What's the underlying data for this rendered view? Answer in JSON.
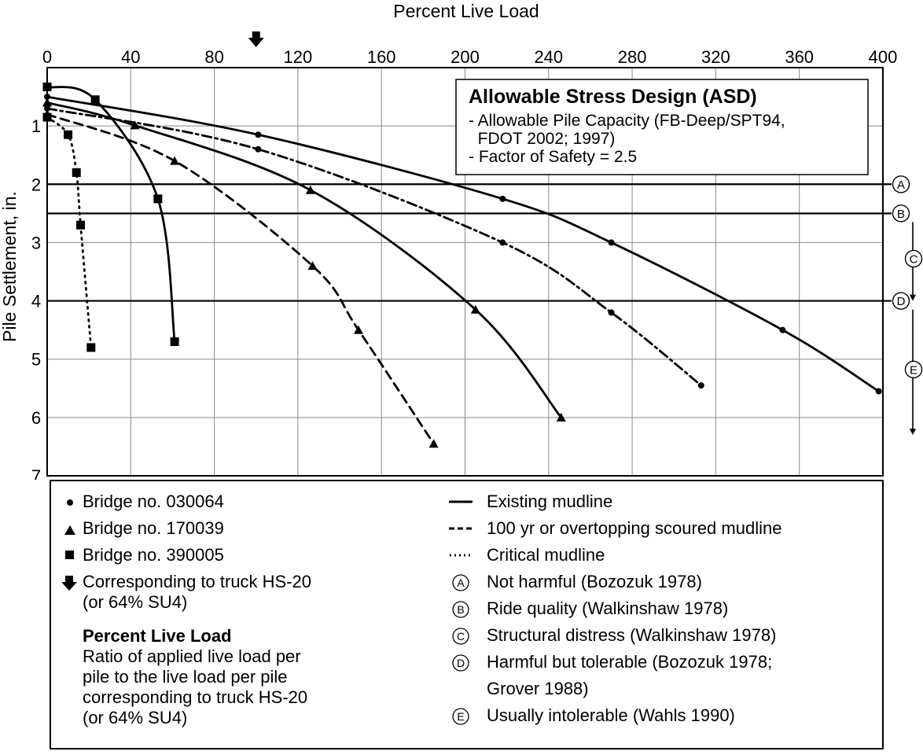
{
  "chart_data": {
    "type": "line",
    "title": "",
    "xlabel": "Percent Live Load",
    "ylabel": "Pile Settlement, in.",
    "xlim": [
      0,
      400
    ],
    "ylim": [
      0,
      7
    ],
    "y_inverted": true,
    "x_axis_position": "top",
    "grid": true,
    "x_ticks": [
      "0",
      "40",
      "80",
      "120",
      "160",
      "200",
      "240",
      "280",
      "320",
      "360",
      "400"
    ],
    "y_ticks": [
      "1",
      "2",
      "3",
      "4",
      "5",
      "6",
      "7"
    ],
    "hs20_marker_x": 100,
    "series": [
      {
        "marker": "circle",
        "style": "solid",
        "points": [
          [
            0,
            0.5
          ],
          [
            101,
            1.15
          ],
          [
            218,
            2.25
          ],
          [
            270,
            3.0
          ],
          [
            352,
            4.5
          ],
          [
            398,
            5.55
          ]
        ]
      },
      {
        "marker": "circle",
        "style": "dashdot",
        "points": [
          [
            0,
            0.7
          ],
          [
            101,
            1.4
          ],
          [
            218,
            3.0
          ],
          [
            270,
            4.2
          ],
          [
            313,
            5.45
          ]
        ]
      },
      {
        "marker": "triangle",
        "style": "solid",
        "points": [
          [
            0,
            0.6
          ],
          [
            42,
            0.99
          ],
          [
            126,
            2.1
          ],
          [
            205,
            4.15
          ],
          [
            246,
            6.0
          ]
        ]
      },
      {
        "marker": "triangle",
        "style": "dashed",
        "points": [
          [
            0,
            0.8
          ],
          [
            61,
            1.6
          ],
          [
            127,
            3.4
          ],
          [
            149,
            4.5
          ],
          [
            185,
            6.45
          ]
        ]
      },
      {
        "marker": "square",
        "style": "solid",
        "points": [
          [
            0,
            0.33
          ],
          [
            23,
            0.55
          ],
          [
            53,
            2.25
          ],
          [
            61,
            4.7
          ]
        ]
      },
      {
        "marker": "square",
        "style": "dotted",
        "points": [
          [
            0,
            0.85
          ],
          [
            10,
            1.15
          ],
          [
            14,
            1.8
          ],
          [
            16,
            2.7
          ],
          [
            21,
            4.8
          ]
        ]
      }
    ],
    "reference_lines": [
      {
        "label": "A",
        "y": 2.0
      },
      {
        "label": "B",
        "y": 2.5
      },
      {
        "label": "D",
        "y": 4.0
      }
    ],
    "ranges": [
      {
        "label": "C",
        "from": 2.5,
        "to": 4.0
      },
      {
        "label": "E",
        "from": 4.0,
        "to": 6.3
      }
    ],
    "annotation": {
      "title": "Allowable Stress Design (ASD)",
      "lines": [
        "- Allowable Pile Capacity (FB-Deep/SPT94,",
        "  FDOT 2002; 1997)",
        "- Factor of Safety = 2.5"
      ]
    }
  },
  "legend": {
    "left": [
      {
        "symbol": "circle",
        "text": "Bridge no. 030064"
      },
      {
        "symbol": "triangle",
        "text": "Bridge no. 170039"
      },
      {
        "symbol": "square",
        "text": "Bridge no. 390005"
      },
      {
        "symbol": "arrow",
        "text": "Corresponding to truck HS-20",
        "text2": "(or 64% SU4)"
      }
    ],
    "description": {
      "title": "Percent Live Load",
      "lines": [
        "Ratio of applied live load per",
        "pile to the live load per pile",
        "corresponding to truck HS-20",
        "(or 64% SU4)"
      ]
    },
    "right": [
      {
        "symbol": "solid",
        "text": "Existing mudline"
      },
      {
        "symbol": "dashed",
        "text": "100 yr or overtopping scoured mudline"
      },
      {
        "symbol": "dotted",
        "text": "Critical mudline"
      },
      {
        "symbol": "A",
        "text": "Not harmful (Bozozuk 1978)"
      },
      {
        "symbol": "B",
        "text": "Ride quality (Walkinshaw 1978)"
      },
      {
        "symbol": "C",
        "text": "Structural distress (Walkinshaw 1978)"
      },
      {
        "symbol": "D",
        "text": "Harmful but tolerable (Bozozuk 1978;",
        "text2": "Grover 1988)"
      },
      {
        "symbol": "E",
        "text": "Usually intolerable (Wahls 1990)"
      }
    ]
  }
}
